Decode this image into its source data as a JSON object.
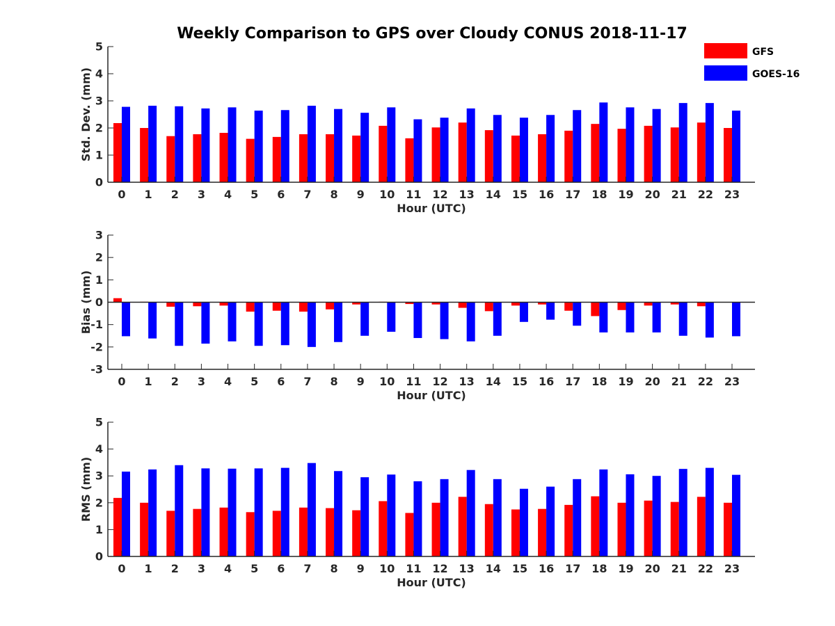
{
  "title": "Weekly Comparison to GPS over Cloudy CONUS 2018-11-17",
  "legend": {
    "placement": "top-right",
    "items": [
      {
        "label": "GFS",
        "color": "#ff0000"
      },
      {
        "label": "GOES-16",
        "color": "#0000ff"
      }
    ]
  },
  "chart_data": [
    {
      "type": "bar",
      "xlabel": "Hour (UTC)",
      "ylabel": "Std. Dev. (mm)",
      "ylim": [
        0,
        5
      ],
      "yticks": [
        0,
        1,
        2,
        3,
        4,
        5
      ],
      "grid": false,
      "categories": [
        "0",
        "1",
        "2",
        "3",
        "4",
        "5",
        "6",
        "7",
        "8",
        "9",
        "10",
        "11",
        "12",
        "13",
        "14",
        "15",
        "16",
        "17",
        "18",
        "19",
        "20",
        "21",
        "22",
        "23"
      ],
      "series": [
        {
          "name": "GFS",
          "color": "#ff0000",
          "values": [
            2.18,
            2.0,
            1.7,
            1.77,
            1.82,
            1.6,
            1.67,
            1.77,
            1.77,
            1.72,
            2.08,
            1.62,
            2.02,
            2.2,
            1.92,
            1.72,
            1.77,
            1.9,
            2.15,
            1.97,
            2.08,
            2.02,
            2.2,
            2.0
          ]
        },
        {
          "name": "GOES-16",
          "color": "#0000ff",
          "values": [
            2.78,
            2.82,
            2.8,
            2.72,
            2.76,
            2.64,
            2.66,
            2.82,
            2.7,
            2.56,
            2.76,
            2.32,
            2.38,
            2.72,
            2.48,
            2.38,
            2.48,
            2.66,
            2.94,
            2.76,
            2.7,
            2.92,
            2.92,
            2.64
          ]
        }
      ]
    },
    {
      "type": "bar",
      "xlabel": "Hour (UTC)",
      "ylabel": "Bias (mm)",
      "ylim": [
        -3,
        3
      ],
      "yticks": [
        -3,
        -2,
        -1,
        0,
        1,
        2,
        3
      ],
      "grid": false,
      "zero_line": true,
      "categories": [
        "0",
        "1",
        "2",
        "3",
        "4",
        "5",
        "6",
        "7",
        "8",
        "9",
        "10",
        "11",
        "12",
        "13",
        "14",
        "15",
        "16",
        "17",
        "18",
        "19",
        "20",
        "21",
        "22",
        "23"
      ],
      "series": [
        {
          "name": "GFS",
          "color": "#ff0000",
          "values": [
            0.18,
            0.02,
            -0.2,
            -0.18,
            -0.15,
            -0.42,
            -0.38,
            -0.42,
            -0.32,
            -0.1,
            0.02,
            -0.08,
            -0.1,
            -0.25,
            -0.4,
            -0.15,
            -0.1,
            -0.38,
            -0.62,
            -0.35,
            -0.15,
            -0.1,
            -0.18,
            0.0
          ]
        },
        {
          "name": "GOES-16",
          "color": "#0000ff",
          "values": [
            -1.52,
            -1.62,
            -1.95,
            -1.85,
            -1.75,
            -1.95,
            -1.92,
            -2.0,
            -1.78,
            -1.5,
            -1.32,
            -1.6,
            -1.65,
            -1.75,
            -1.5,
            -0.88,
            -0.78,
            -1.05,
            -1.35,
            -1.35,
            -1.35,
            -1.5,
            -1.58,
            -1.52
          ]
        }
      ]
    },
    {
      "type": "bar",
      "xlabel": "Hour (UTC)",
      "ylabel": "RMS (mm)",
      "ylim": [
        0,
        5
      ],
      "yticks": [
        0,
        1,
        2,
        3,
        4,
        5
      ],
      "grid": false,
      "categories": [
        "0",
        "1",
        "2",
        "3",
        "4",
        "5",
        "6",
        "7",
        "8",
        "9",
        "10",
        "11",
        "12",
        "13",
        "14",
        "15",
        "16",
        "17",
        "18",
        "19",
        "20",
        "21",
        "22",
        "23"
      ],
      "series": [
        {
          "name": "GFS",
          "color": "#ff0000",
          "values": [
            2.18,
            2.0,
            1.7,
            1.77,
            1.82,
            1.65,
            1.7,
            1.82,
            1.8,
            1.72,
            2.06,
            1.62,
            2.0,
            2.22,
            1.95,
            1.75,
            1.77,
            1.92,
            2.24,
            2.0,
            2.08,
            2.03,
            2.22,
            2.0
          ]
        },
        {
          "name": "GOES-16",
          "color": "#0000ff",
          "values": [
            3.16,
            3.24,
            3.4,
            3.28,
            3.27,
            3.28,
            3.3,
            3.48,
            3.18,
            2.95,
            3.05,
            2.8,
            2.88,
            3.22,
            2.88,
            2.52,
            2.6,
            2.88,
            3.24,
            3.06,
            3.0,
            3.26,
            3.3,
            3.04
          ]
        }
      ]
    }
  ]
}
